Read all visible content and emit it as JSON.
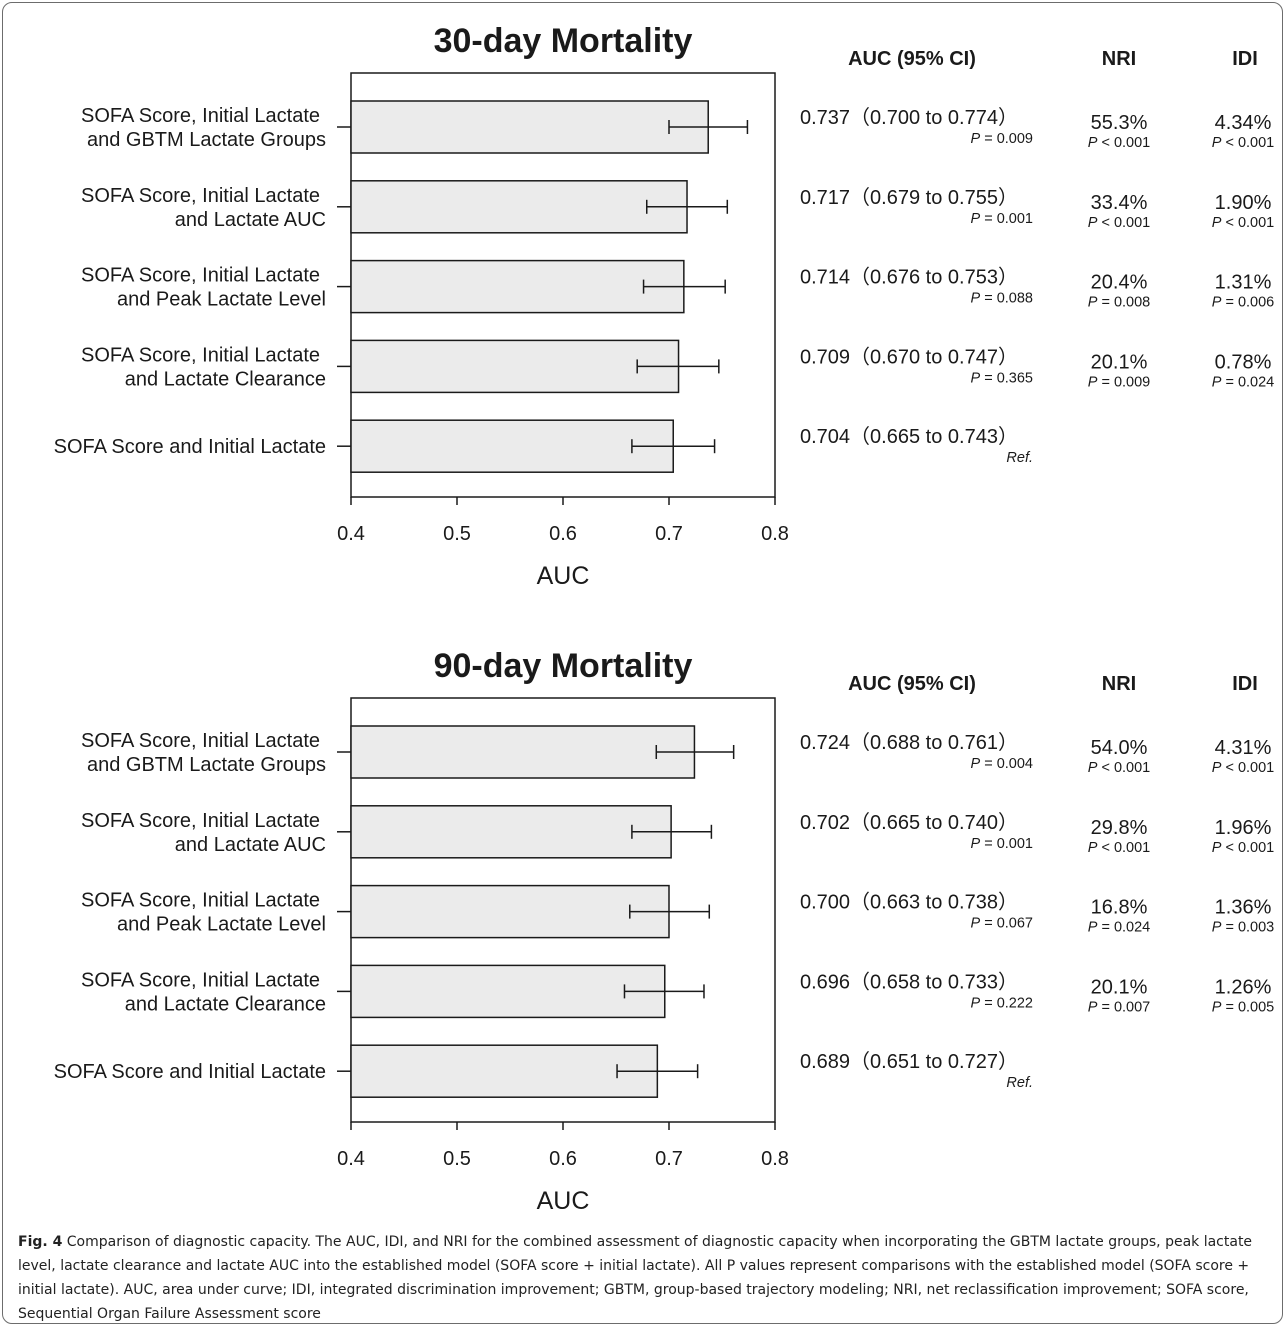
{
  "chart_data": [
    {
      "type": "bar",
      "title": "30-day Mortality",
      "xlabel": "AUC",
      "xlim": [
        0.4,
        0.8
      ],
      "xticks": [
        "0.4",
        "0.5",
        "0.6",
        "0.7",
        "0.8"
      ],
      "orientation": "horizontal",
      "grid": false,
      "bar_color": "#ebebeb",
      "table_headers": {
        "auc": "AUC (95% CI)",
        "nri": "NRI",
        "idi": "IDI"
      },
      "rows": [
        {
          "label": [
            "SOFA Score, Initial Lactate",
            "and GBTM Lactate Groups"
          ],
          "value": 0.737,
          "ci": [
            0.7,
            0.774
          ],
          "auc_text": "0.737（0.700 to 0.774）",
          "auc_p": "P = 0.009",
          "nri": "55.3%",
          "nri_p": "P < 0.001",
          "idi": "4.34%",
          "idi_p": "P < 0.001"
        },
        {
          "label": [
            "SOFA Score, Initial Lactate",
            "and Lactate AUC"
          ],
          "value": 0.717,
          "ci": [
            0.679,
            0.755
          ],
          "auc_text": "0.717（0.679 to 0.755）",
          "auc_p": "P = 0.001",
          "nri": "33.4%",
          "nri_p": "P < 0.001",
          "idi": "1.90%",
          "idi_p": "P < 0.001"
        },
        {
          "label": [
            "SOFA Score, Initial Lactate",
            "and Peak Lactate Level"
          ],
          "value": 0.714,
          "ci": [
            0.676,
            0.753
          ],
          "auc_text": "0.714（0.676 to 0.753）",
          "auc_p": "P = 0.088",
          "nri": "20.4%",
          "nri_p": "P = 0.008",
          "idi": "1.31%",
          "idi_p": "P = 0.006"
        },
        {
          "label": [
            "SOFA Score, Initial Lactate",
            "and Lactate Clearance"
          ],
          "value": 0.709,
          "ci": [
            0.67,
            0.747
          ],
          "auc_text": "0.709（0.670 to 0.747）",
          "auc_p": "P = 0.365",
          "nri": "20.1%",
          "nri_p": "P = 0.009",
          "idi": "0.78%",
          "idi_p": "P = 0.024"
        },
        {
          "label": [
            "SOFA Score and Initial Lactate"
          ],
          "value": 0.704,
          "ci": [
            0.665,
            0.743
          ],
          "auc_text": "0.704（0.665 to 0.743）",
          "auc_p": "Ref.",
          "nri": "",
          "nri_p": "",
          "idi": "",
          "idi_p": ""
        }
      ]
    },
    {
      "type": "bar",
      "title": "90-day Mortality",
      "xlabel": "AUC",
      "xlim": [
        0.4,
        0.8
      ],
      "xticks": [
        "0.4",
        "0.5",
        "0.6",
        "0.7",
        "0.8"
      ],
      "orientation": "horizontal",
      "grid": false,
      "bar_color": "#ebebeb",
      "table_headers": {
        "auc": "AUC (95% CI)",
        "nri": "NRI",
        "idi": "IDI"
      },
      "rows": [
        {
          "label": [
            "SOFA Score, Initial Lactate",
            "and GBTM Lactate Groups"
          ],
          "value": 0.724,
          "ci": [
            0.688,
            0.761
          ],
          "auc_text": "0.724（0.688 to 0.761）",
          "auc_p": "P = 0.004",
          "nri": "54.0%",
          "nri_p": "P < 0.001",
          "idi": "4.31%",
          "idi_p": "P < 0.001"
        },
        {
          "label": [
            "SOFA Score, Initial Lactate",
            "and Lactate AUC"
          ],
          "value": 0.702,
          "ci": [
            0.665,
            0.74
          ],
          "auc_text": "0.702（0.665 to 0.740）",
          "auc_p": "P = 0.001",
          "nri": "29.8%",
          "nri_p": "P < 0.001",
          "idi": "1.96%",
          "idi_p": "P < 0.001"
        },
        {
          "label": [
            "SOFA Score, Initial Lactate",
            "and Peak Lactate Level"
          ],
          "value": 0.7,
          "ci": [
            0.663,
            0.738
          ],
          "auc_text": "0.700（0.663 to 0.738）",
          "auc_p": "P = 0.067",
          "nri": "16.8%",
          "nri_p": "P = 0.024",
          "idi": "1.36%",
          "idi_p": "P = 0.003"
        },
        {
          "label": [
            "SOFA Score, Initial Lactate",
            "and Lactate Clearance"
          ],
          "value": 0.696,
          "ci": [
            0.658,
            0.733
          ],
          "auc_text": "0.696（0.658 to 0.733）",
          "auc_p": "P = 0.222",
          "nri": "20.1%",
          "nri_p": "P = 0.007",
          "idi": "1.26%",
          "idi_p": "P = 0.005"
        },
        {
          "label": [
            "SOFA Score and Initial Lactate"
          ],
          "value": 0.689,
          "ci": [
            0.651,
            0.727
          ],
          "auc_text": "0.689（0.651 to 0.727）",
          "auc_p": "Ref.",
          "nri": "",
          "nri_p": "",
          "idi": "",
          "idi_p": ""
        }
      ]
    }
  ],
  "caption": {
    "label": "Fig. 4",
    "text": " Comparison of diagnostic capacity. The AUC, IDI, and NRI for the combined assessment of diagnostic capacity when incorporating the GBTM lactate groups, peak lactate level, lactate clearance and lactate AUC into the established model (SOFA score + initial lactate). All P values represent comparisons with the established model (SOFA score + initial lactate). AUC, area under curve; IDI, integrated discrimination improvement; GBTM, group-based trajectory modeling; NRI, net reclassification improvement; SOFA score, Sequential Organ Failure Assessment score"
  }
}
